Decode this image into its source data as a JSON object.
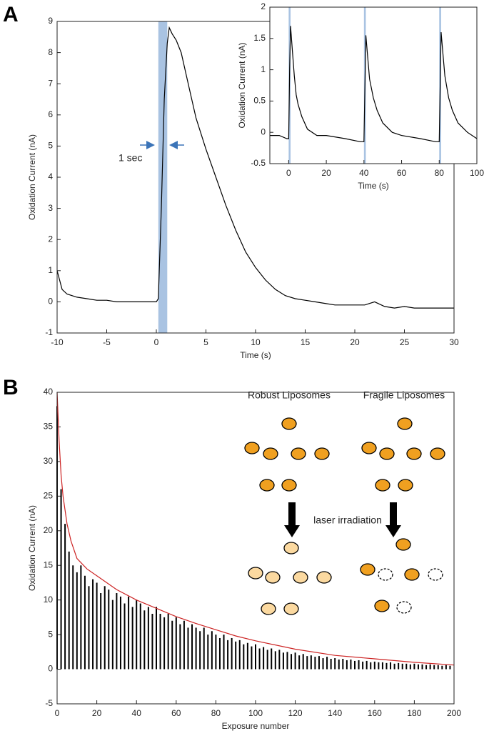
{
  "chart_data": [
    {
      "type": "line",
      "label": "A",
      "xlabel": "Time (s)",
      "ylabel": "Oxidation Current (nA)",
      "xlim": [
        -10,
        30
      ],
      "ylim": [
        -1,
        9
      ],
      "xticks": [
        -10,
        -5,
        0,
        5,
        10,
        15,
        20,
        25,
        30
      ],
      "yticks": [
        -1,
        0,
        1,
        2,
        3,
        4,
        5,
        6,
        7,
        8,
        9
      ],
      "spans": [
        [
          0.2,
          1.1
        ]
      ],
      "span_color": "#a9c3e2",
      "annotations": [
        "1 sec"
      ],
      "series": [
        {
          "type": "line",
          "color": "#000000",
          "x": [
            -10,
            -9.5,
            -9,
            -8,
            -7,
            -6,
            -5,
            -4,
            -3,
            -2,
            -1,
            0,
            0.2,
            0.5,
            0.8,
            1.1,
            1.3,
            1.6,
            2,
            2.5,
            3,
            3.5,
            4,
            5,
            6,
            7,
            8,
            9,
            10,
            11,
            12,
            13,
            14,
            15,
            16,
            17,
            18,
            19,
            20,
            21,
            22,
            23,
            24,
            25,
            26,
            27,
            28,
            29,
            30
          ],
          "values": [
            1.0,
            0.4,
            0.25,
            0.15,
            0.1,
            0.05,
            0.05,
            0.0,
            0.0,
            0.0,
            0.0,
            0.0,
            0.1,
            3,
            6.5,
            8.3,
            8.8,
            8.6,
            8.4,
            8.0,
            7.3,
            6.6,
            5.9,
            4.9,
            4.0,
            3.1,
            2.3,
            1.6,
            1.1,
            0.7,
            0.4,
            0.2,
            0.1,
            0.05,
            0.0,
            -0.05,
            -0.1,
            -0.1,
            -0.1,
            -0.1,
            0.0,
            -0.15,
            -0.2,
            -0.15,
            -0.2,
            -0.2,
            -0.2,
            -0.2,
            -0.2
          ]
        }
      ]
    },
    {
      "type": "line",
      "xlabel": "Time (s)",
      "ylabel": "Oxidation Current (nA)",
      "xlim": [
        -10,
        100
      ],
      "ylim": [
        -0.5,
        2
      ],
      "xticks": [
        0,
        20,
        40,
        60,
        80,
        100
      ],
      "yticks": [
        -0.5,
        0,
        0.5,
        1,
        1.5,
        2
      ],
      "spans": [
        [
          0,
          1
        ],
        [
          40,
          41
        ],
        [
          80,
          81
        ]
      ],
      "span_color": "#a9c3e2",
      "series": [
        {
          "type": "line",
          "color": "#000000",
          "x": [
            -10,
            -5,
            -1,
            0,
            0.5,
            1,
            2,
            3,
            4,
            5,
            7,
            10,
            15,
            20,
            30,
            38,
            40,
            41,
            42,
            43,
            45,
            47,
            50,
            55,
            60,
            70,
            78,
            80,
            81,
            82,
            83,
            85,
            87,
            90,
            95,
            100
          ],
          "values": [
            -0.05,
            -0.05,
            -0.1,
            -0.1,
            1.0,
            1.7,
            1.3,
            0.9,
            0.6,
            0.45,
            0.25,
            0.05,
            -0.05,
            -0.05,
            -0.1,
            -0.15,
            -0.15,
            1.55,
            1.2,
            0.85,
            0.55,
            0.35,
            0.15,
            0.0,
            -0.05,
            -0.1,
            -0.15,
            -0.15,
            1.6,
            1.25,
            0.9,
            0.55,
            0.35,
            0.15,
            0.0,
            -0.1
          ]
        }
      ]
    },
    {
      "type": "line",
      "label": "B",
      "xlabel": "Exposure number",
      "ylabel": "Oxidation Current (nA)",
      "xlim": [
        0,
        200
      ],
      "ylim": [
        -5,
        40
      ],
      "xticks": [
        0,
        20,
        40,
        60,
        80,
        100,
        120,
        140,
        160,
        180,
        200
      ],
      "yticks": [
        -5,
        0,
        5,
        10,
        15,
        20,
        25,
        30,
        35,
        40
      ],
      "annotations": [
        "Robust Liposomes",
        "Fragile Liposomes",
        "laser irradiation"
      ],
      "series": [
        {
          "type": "stem",
          "color": "#000000",
          "x": [
            0,
            2,
            4,
            6,
            8,
            10,
            12,
            14,
            16,
            18,
            20,
            22,
            24,
            26,
            28,
            30,
            32,
            34,
            36,
            38,
            40,
            42,
            44,
            46,
            48,
            50,
            52,
            54,
            56,
            58,
            60,
            62,
            64,
            66,
            68,
            70,
            72,
            74,
            76,
            78,
            80,
            82,
            84,
            86,
            88,
            90,
            92,
            94,
            96,
            98,
            100,
            102,
            104,
            106,
            108,
            110,
            112,
            114,
            116,
            118,
            120,
            122,
            124,
            126,
            128,
            130,
            132,
            134,
            136,
            138,
            140,
            142,
            144,
            146,
            148,
            150,
            152,
            154,
            156,
            158,
            160,
            162,
            164,
            166,
            168,
            170,
            172,
            174,
            176,
            178,
            180,
            182,
            184,
            186,
            188,
            190,
            192,
            194,
            196,
            198
          ],
          "values": [
            38,
            26,
            21,
            17,
            15,
            14,
            15,
            13.5,
            12,
            13,
            12.5,
            11,
            12,
            11.5,
            10,
            11,
            10.5,
            9.5,
            10.5,
            9,
            10,
            9.5,
            8.5,
            9,
            8,
            9,
            8,
            7.5,
            8,
            7,
            7.5,
            6.5,
            7,
            6,
            6.5,
            6,
            5.5,
            6,
            5,
            5.5,
            5,
            4.5,
            5,
            4.2,
            4.5,
            4,
            4.2,
            3.6,
            3.8,
            3.3,
            3.6,
            3.0,
            3.2,
            2.8,
            3.0,
            2.6,
            2.8,
            2.4,
            2.5,
            2.2,
            2.4,
            2.0,
            2.2,
            1.9,
            2.0,
            1.8,
            1.9,
            1.6,
            1.8,
            1.5,
            1.6,
            1.4,
            1.5,
            1.3,
            1.4,
            1.2,
            1.3,
            1.1,
            1.2,
            1.0,
            1.1,
            1.0,
            1.0,
            0.9,
            1.0,
            0.8,
            0.9,
            0.8,
            0.8,
            0.7,
            0.8,
            0.7,
            0.7,
            0.6,
            0.7,
            0.6,
            0.6,
            0.5,
            0.6,
            0.5
          ]
        },
        {
          "type": "line",
          "color": "#cc2222",
          "x": [
            0,
            1,
            2,
            3,
            5,
            7,
            10,
            15,
            20,
            30,
            40,
            50,
            60,
            70,
            80,
            90,
            100,
            120,
            140,
            160,
            180,
            200
          ],
          "values": [
            40,
            33,
            28,
            25,
            21,
            18.5,
            16,
            14.5,
            13.5,
            11.5,
            10,
            8.8,
            7.6,
            6.6,
            5.7,
            4.8,
            4.1,
            2.9,
            2.0,
            1.5,
            1.0,
            0.6
          ]
        }
      ]
    }
  ]
}
